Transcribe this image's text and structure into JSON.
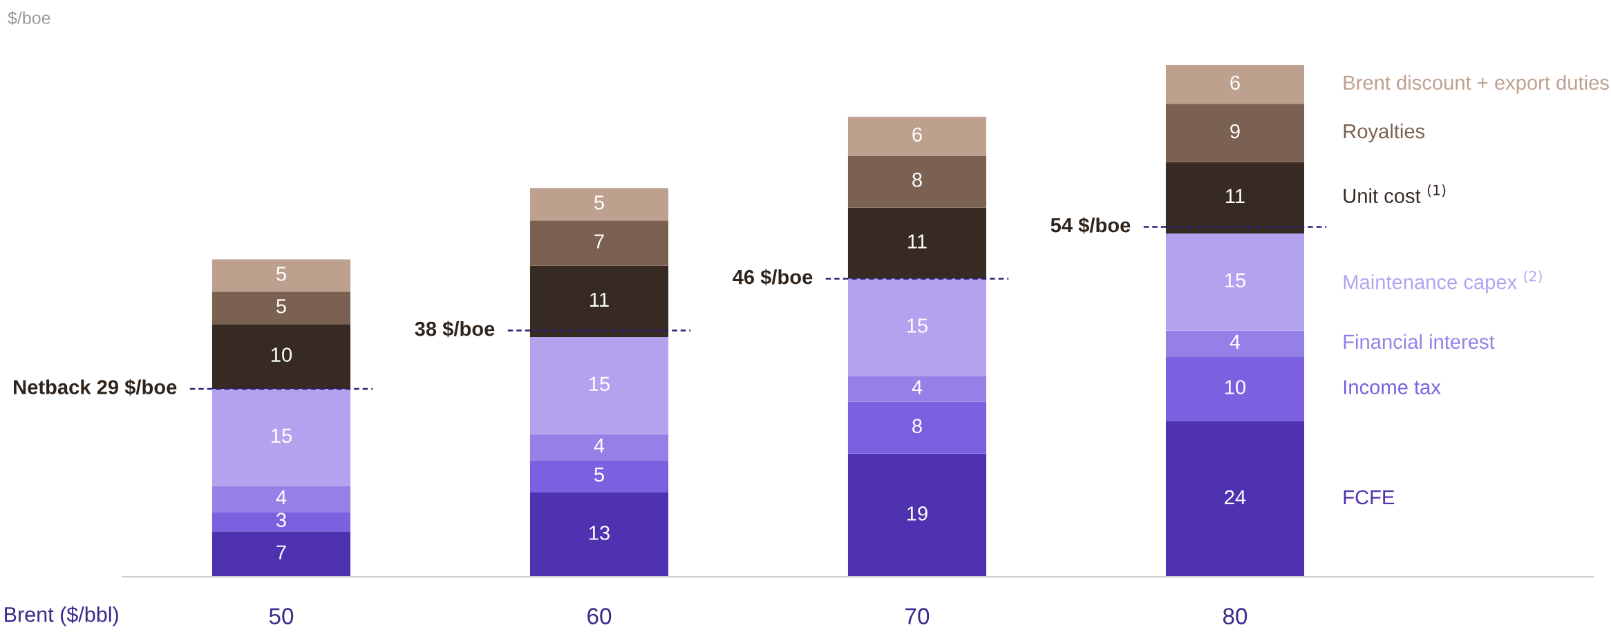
{
  "chart_data": {
    "type": "bar",
    "stacked": true,
    "ylabel": "$/boe",
    "xlabel": "Brent ($/bbl)",
    "categories": [
      "50",
      "60",
      "70",
      "80"
    ],
    "series": [
      {
        "name": "FCFE",
        "color": "#4f32b0",
        "values": [
          7,
          13,
          19,
          24
        ]
      },
      {
        "name": "Income tax",
        "color": "#7b61e0",
        "values": [
          3,
          5,
          8,
          10
        ]
      },
      {
        "name": "Financial interest",
        "color": "#9580e8",
        "values": [
          4,
          4,
          4,
          4
        ]
      },
      {
        "name": "Maintenance capex $^{(2)}$",
        "color": "#b3a3ef",
        "values": [
          15,
          15,
          15,
          15
        ]
      },
      {
        "name": "Unit cost $^{(1)}$",
        "color": "#372a22",
        "values": [
          10,
          11,
          11,
          11
        ]
      },
      {
        "name": "Royalties",
        "color": "#7b6152",
        "values": [
          5,
          7,
          8,
          9
        ]
      },
      {
        "name": "Brent discount + export duties",
        "color": "#bea08f",
        "values": [
          5,
          5,
          6,
          6
        ]
      }
    ],
    "tick_labels": "x",
    "data_labels": true,
    "grid": false,
    "legend": false,
    "ref_lines": [
      {
        "axis": "y",
        "value": 29,
        "label": "Netback 29 $/boe",
        "color": "#2d1f7a",
        "line_style": "dashed"
      },
      {
        "axis": "y",
        "value": 38,
        "label": "38 $/boe",
        "color": "#2d1f7a",
        "line_style": "dashed"
      },
      {
        "axis": "y",
        "value": 46,
        "label": "46 $/boe",
        "color": "#2d1f7a",
        "line_style": "dashed"
      },
      {
        "axis": "y",
        "value": 54,
        "label": "54 $/boe",
        "color": "#2d1f7a",
        "line_style": "dashed"
      }
    ]
  }
}
